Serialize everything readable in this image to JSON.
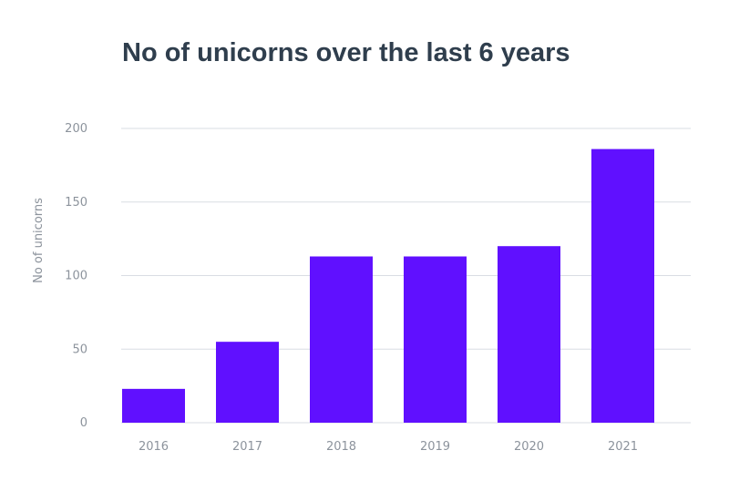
{
  "chart_data": {
    "type": "bar",
    "title": "No of unicorns over the last 6 years",
    "xlabel": "",
    "ylabel": "No of unicorns",
    "categories": [
      "2016",
      "2017",
      "2018",
      "2019",
      "2020",
      "2021"
    ],
    "values": [
      23,
      55,
      113,
      113,
      120,
      186
    ],
    "ylim": [
      0,
      200
    ],
    "yticks": [
      0,
      50,
      100,
      150,
      200
    ],
    "grid": true,
    "bar_color": "#6010ff",
    "grid_color": "#d9dde3"
  }
}
